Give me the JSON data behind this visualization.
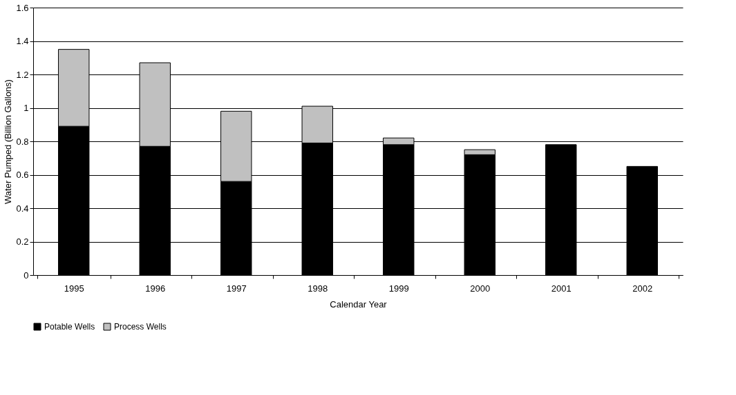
{
  "chart_data": {
    "type": "bar",
    "stacked": true,
    "xlabel": "Calendar Year",
    "ylabel": "Water Pumped (Billion Gallons)",
    "categories": [
      "1995",
      "1996",
      "1997",
      "1998",
      "1999",
      "2000",
      "2001",
      "2002"
    ],
    "series": [
      {
        "name": "Potable Wells",
        "color": "#000000",
        "values": [
          0.89,
          0.77,
          0.56,
          0.79,
          0.78,
          0.72,
          0.78,
          0.65
        ]
      },
      {
        "name": "Process Wells",
        "color": "#c0c0c0",
        "values": [
          0.46,
          0.5,
          0.42,
          0.22,
          0.04,
          0.03,
          null,
          null
        ]
      }
    ],
    "ylim": [
      0,
      1.6
    ],
    "yticks": [
      0,
      0.2,
      0.4,
      0.6,
      0.8,
      1,
      1.2,
      1.4,
      1.6
    ],
    "grid": "y",
    "legend": "bottom"
  }
}
